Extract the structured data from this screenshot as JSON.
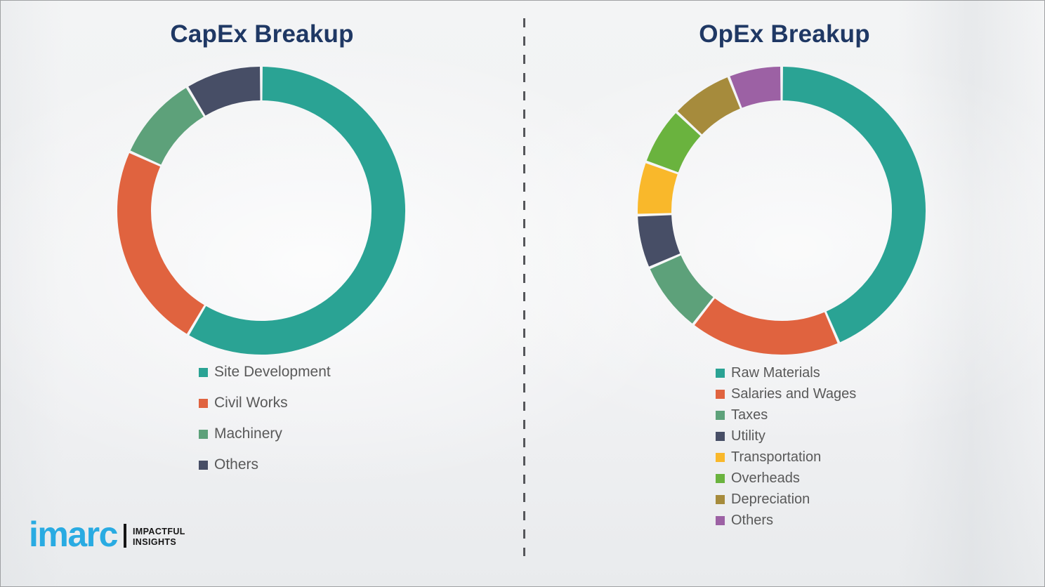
{
  "colors": {
    "background": "#f0f1f2",
    "border": "#9fa1a3",
    "title": "#1f3864",
    "legend_text": "#595959",
    "divider": "#55565a",
    "logo_blue": "#29abe2",
    "logo_black": "#151515"
  },
  "chart_data": [
    {
      "type": "pie",
      "subtype": "donut",
      "title": "CapEx Breakup",
      "direction": "clockwise",
      "start_angle_deg": 0,
      "hole_ratio": 0.77,
      "legend_position": "below-left",
      "labels": [
        "Site Development",
        "Civil Works",
        "Machinery",
        "Others"
      ],
      "values": [
        58.5,
        23.2,
        9.7,
        8.6
      ],
      "colors": [
        "#2aa394",
        "#e0633f",
        "#5da17a",
        "#474e66"
      ]
    },
    {
      "type": "pie",
      "subtype": "donut",
      "title": "OpEx Breakup",
      "direction": "clockwise",
      "start_angle_deg": 0,
      "hole_ratio": 0.77,
      "legend_position": "below-left",
      "labels": [
        "Raw Materials",
        "Salaries and Wages",
        "Taxes",
        "Utility",
        "Transportation",
        "Overheads",
        "Depreciation",
        "Others"
      ],
      "values": [
        43.5,
        17,
        8,
        6,
        6,
        6.5,
        7,
        6
      ],
      "colors": [
        "#2aa394",
        "#e0633f",
        "#5da17a",
        "#474e66",
        "#f9b82b",
        "#6ab33e",
        "#a68b3c",
        "#9c61a4"
      ]
    }
  ],
  "divider": {
    "style": "vertical-dashed-line"
  },
  "logo": {
    "brand": "imarc",
    "tagline_line1": "IMPACTFUL",
    "tagline_line2": "INSIGHTS"
  }
}
